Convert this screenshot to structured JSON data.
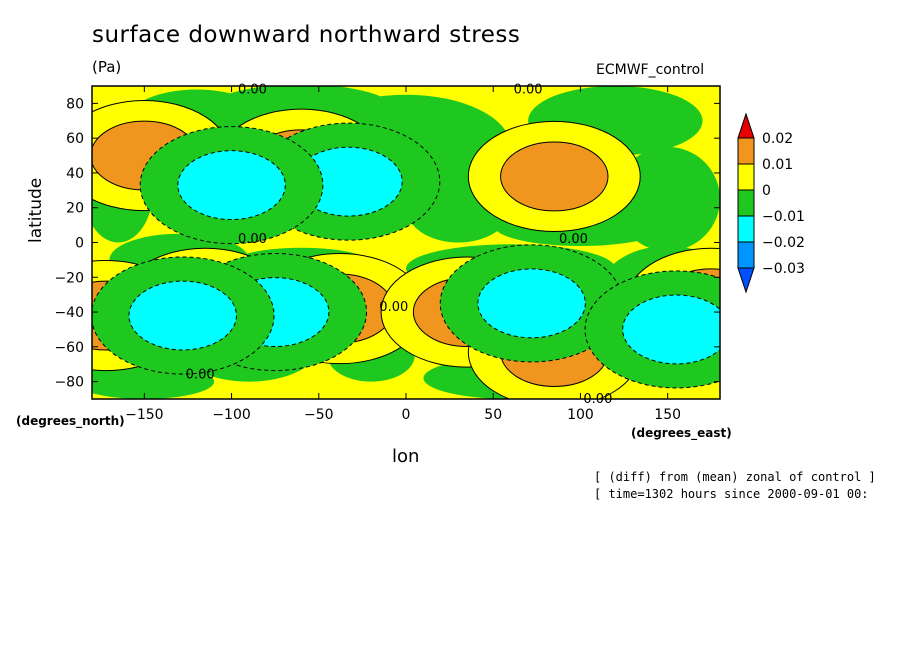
{
  "chart_data": {
    "type": "heatmap",
    "title": "surface downward northward stress",
    "units": "(Pa)",
    "source_label": "ECMWF_control",
    "xlabel": "lon",
    "ylabel": "latitude",
    "x_unit_label": "(degrees_east)",
    "y_unit_label": "(degrees_north)",
    "xlim": [
      -180,
      180
    ],
    "ylim": [
      -90,
      90
    ],
    "x_ticks": [
      -150,
      -100,
      -50,
      0,
      50,
      100,
      150
    ],
    "y_ticks": [
      80,
      60,
      40,
      20,
      0,
      -20,
      -40,
      -60,
      -80
    ],
    "x_tick_labels": [
      "−150",
      "−100",
      "−50",
      "0",
      "50",
      "100",
      "150"
    ],
    "y_tick_labels": [
      "80",
      "60",
      "40",
      "20",
      "0",
      "−20",
      "−40",
      "−60",
      "−80"
    ],
    "levels": [
      {
        "label": "0.02",
        "value": 0.02
      },
      {
        "label": "0.01",
        "value": 0.01
      },
      {
        "label": "0",
        "value": 0
      },
      {
        "label": "−0.01",
        "value": -0.01
      },
      {
        "label": "−0.02",
        "value": -0.02
      },
      {
        "label": "−0.03",
        "value": -0.03
      }
    ],
    "colors": {
      "above_0.02": "#e60000",
      "0.01_to_0.02": "#f0961e",
      "0_to_0.01": "#ffff00",
      "-0.01_to_0": "#1ec81e",
      "-0.02_to_-0.01": "#00ffff",
      "-0.03_to_-0.02": "#0096ff",
      "below_-0.03": "#0050ff"
    },
    "contour_labels": [
      {
        "text": "0.00",
        "lon": -88,
        "lat": 88
      },
      {
        "text": "0.00",
        "lon": 70,
        "lat": 88
      },
      {
        "text": "0.00",
        "lon": -88,
        "lat": 2
      },
      {
        "text": "0.00",
        "lon": 96,
        "lat": 2
      },
      {
        "text": "0.00",
        "lon": -7,
        "lat": -37
      },
      {
        "text": "0.00",
        "lon": -118,
        "lat": -76
      },
      {
        "text": "0.00",
        "lon": 110,
        "lat": -90
      }
    ],
    "features": [
      {
        "kind": "pos",
        "lon": -150,
        "lat": 50,
        "peak": 0.015
      },
      {
        "kind": "pos",
        "lon": -60,
        "lat": 45,
        "peak": 0.012
      },
      {
        "kind": "pos",
        "lon": 85,
        "lat": 38,
        "peak": 0.015
      },
      {
        "kind": "pos",
        "lon": -115,
        "lat": -35,
        "peak": 0.014
      },
      {
        "kind": "pos",
        "lon": -38,
        "lat": -38,
        "peak": 0.023
      },
      {
        "kind": "pos",
        "lon": 35,
        "lat": -40,
        "peak": 0.012
      },
      {
        "kind": "pos",
        "lon": 85,
        "lat": -63,
        "peak": 0.012
      },
      {
        "kind": "pos",
        "lon": -172,
        "lat": -42,
        "peak": 0.015
      },
      {
        "kind": "pos",
        "lon": 175,
        "lat": -35,
        "peak": 0.023
      },
      {
        "kind": "neg",
        "lon": -33,
        "lat": 35,
        "peak": -0.015
      },
      {
        "kind": "neg",
        "lon": -100,
        "lat": 33,
        "peak": -0.013
      },
      {
        "kind": "neg",
        "lon": -75,
        "lat": -40,
        "peak": -0.016
      },
      {
        "kind": "neg",
        "lon": 72,
        "lat": -35,
        "peak": -0.016
      },
      {
        "kind": "neg",
        "lon": 155,
        "lat": -50,
        "peak": -0.016
      },
      {
        "kind": "neg",
        "lon": -128,
        "lat": -42,
        "peak": -0.012
      }
    ]
  },
  "notes": {
    "line1": "[ (diff) from (mean) zonal of control ]",
    "line2": "[ time=1302 hours since 2000-09-01 00:"
  }
}
